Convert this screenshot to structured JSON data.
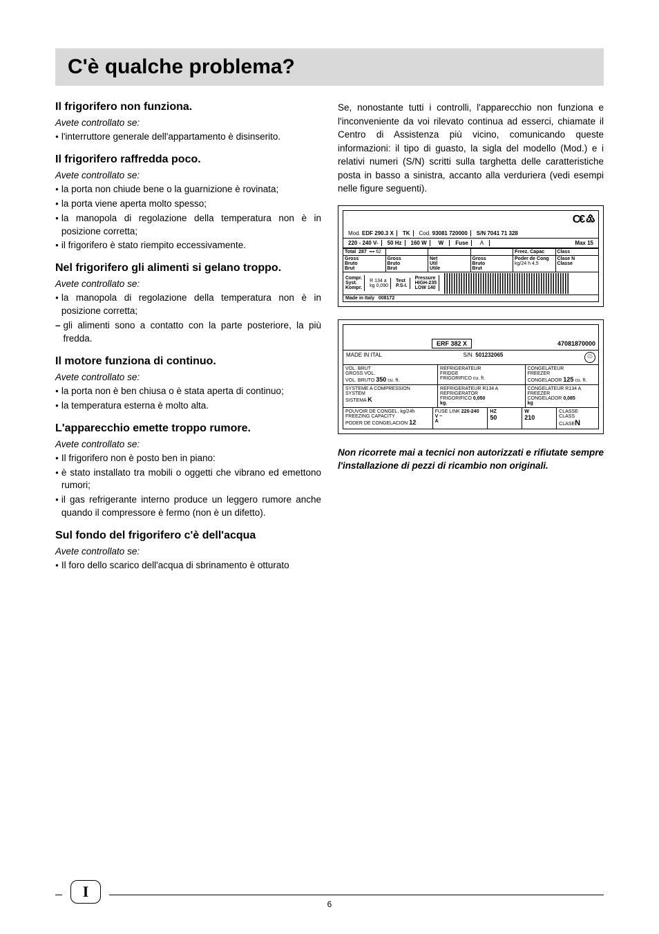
{
  "page_title": "C'è qualche problema?",
  "page_number": "6",
  "footer_letter": "I",
  "left_column": {
    "sections": [
      {
        "title": "Il frigorifero non funziona.",
        "subtitle": "Avete controllato se:",
        "items": [
          "l'interruttore generale dell'appartamento è disinserito."
        ]
      },
      {
        "title": "Il frigorifero raffredda poco.",
        "subtitle": "Avete controllato se:",
        "items": [
          "la porta non chiude bene o la guarnizione è rovinata;",
          "la porta viene aperta molto spesso;",
          "la manopola di regolazione della temperatura non è in posizione corretta;",
          "il frigorifero è stato riempito eccessivamente."
        ]
      },
      {
        "title": "Nel frigorifero gli alimenti si gelano troppo.",
        "subtitle": "Avete controllato se:",
        "items": [
          "la manopola di regolazione della temperatura non è in posizione corretta;",
          "gli alimenti sono a contatto con la parte posteriore, la più fredda."
        ],
        "dashes": [
          false,
          true
        ]
      },
      {
        "title": "Il motore funziona di continuo.",
        "subtitle": "Avete controllato se:",
        "items": [
          "la porta non è ben chiusa o è stata aperta di continuo;",
          "la temperatura esterna è molto alta."
        ]
      },
      {
        "title": "L'apparecchio emette troppo rumore.",
        "subtitle": "Avete controllato se:",
        "items": [
          "Il frigorifero non è posto ben in piano:",
          "è stato installato tra mobili o oggetti che vibrano ed emettono rumori;",
          "il gas refrigerante interno produce un leggero rumore anche quando il compressore è fermo (non è un difetto)."
        ]
      },
      {
        "title": "Sul fondo del frigorifero c'è dell'acqua",
        "subtitle": "Avete controllato se:",
        "items": [
          "Il foro dello scarico dell'acqua di sbrinamento è otturato"
        ]
      }
    ]
  },
  "right_column": {
    "intro": "Se, nonostante tutti i controlli, l'apparecchio non funziona e l'inconveniente da voi rilevato continua ad esserci, chiamate il Centro di Assistenza più vicino, comunicando queste informazioni: il tipo di guasto, la sigla del modello (Mod.) e i relativi numeri (S/N) scritti sulla targhetta delle caratteristiche posta in basso a sinistra, accanto alla verduriera (vedi esempi nelle figure seguenti).",
    "warning": "Non ricorrete mai a tecnici non autorizzati e rifiutate sempre l'installazione di pezzi di ricambio non originali."
  },
  "label1": {
    "mod": "EDF  290.3  X",
    "tk": "TK",
    "cod": "93081 720000",
    "sn": "7041 71 328",
    "volt": "220 - 240 V-",
    "hz": "50 Hz",
    "watt": "160  W",
    "watt2": "W",
    "fuse": "Fuse",
    "fuse_a": "A",
    "max": "Max  15",
    "total": "Total",
    "total_val": "287",
    "total_liter": "62",
    "freez": "Freez.",
    "capac": "Capac",
    "class": "Class",
    "gross_bruto_brut": "Gross\nBruto\nBrut",
    "net_util_utile": "Net\nUtil\nUtile",
    "poder": "Poder de Cong",
    "poder_val": "kg/24 h  4,5",
    "clase_n": "Clase N",
    "classe": "Classe",
    "compr": "Compr.\nSyst.\nKompr.",
    "r134a": "R  134 a",
    "kg": "kg  0,090",
    "test": "Test\nP.S-I.",
    "pressure": "Pressure\nHIGH-235\nLOW  140",
    "made": "Made in Italy",
    "made_num": "008172"
  },
  "label2": {
    "model": "ERF  382 X",
    "code": "47081870000",
    "made": "MADE IN ITAL",
    "sn_label": "S/N",
    "sn": "501232065",
    "vol_brut": "VOL. BRUT\nGROSS VOL.\nVOL. BRUTO",
    "vol_val": "350",
    "cuft": "cu. ft.",
    "refrigerateur": "REFRIGERATEUR\nFRIDGE\nFRIGORIFICO",
    "congelateur": "CONGELATEUR\nFREEZER\nCONGELADOR",
    "congel_val": "125",
    "systeme": "SYSTEME A COMPRESSION\nSYSTEM\nSISTEMA",
    "systeme_k": "K",
    "refrig_r134a": "REFRIGERATEUR R134 A\nREFRIGERATOR\nFRIGORIFICO",
    "refrig_kg": "0,050\nkg.",
    "congel_r134a": "CONGELATEUR R134 A\nFREEZER\nCONGELADOR",
    "congel_kg": "0,085\nkg",
    "pouvoir": "POUVOIR DE CONGEL. kg/24h\nFREEZING CAPACITY\nPODER DE CONGELACION",
    "pouvoir_val": "12",
    "fuselink": "FUSE LINK",
    "fuselink_val": "220-240\nV ~",
    "fuselink_a": "A",
    "hz": "HZ",
    "hz_val": "50",
    "w": "W",
    "w_val": "210",
    "classe": "CLASSE\nCLASS\nCLASE",
    "classe_n": "N"
  }
}
